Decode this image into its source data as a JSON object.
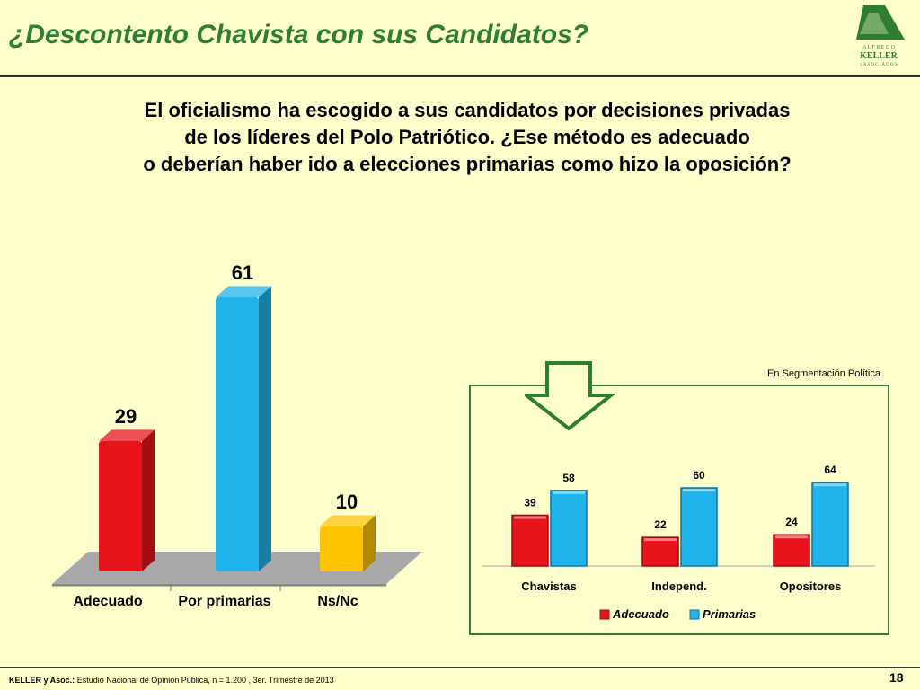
{
  "slide": {
    "title": "¿Descontento Chavista con sus Candidatos?",
    "question_lines": [
      "El oficialismo ha escogido a sus candidatos por decisiones privadas",
      "de los líderes del Polo Patriótico. ¿Ese método es adecuado",
      "o deberían haber ido a elecciones primarias como hizo la oposición?"
    ],
    "segment_note": "En Segmentación Política",
    "footer_source": "KELLER y Asoc.:",
    "footer_text": " Estudio Nacional de Opinión Pública, n = 1.200 , 3er. Trimestre de 2013",
    "page_number": "18"
  },
  "logo": {
    "line1": "A L F R E D O",
    "line2": "KELLER",
    "line3": "y  A S O C I A D O S",
    "color": "#2E7D32"
  },
  "colors": {
    "background": "#FFFFCC",
    "accent_green": "#2E7D32",
    "red": "#E8141C",
    "blue": "#1FB4EC",
    "yellow": "#FFC400",
    "floor": "#A8A8A8"
  },
  "chart_data": [
    {
      "type": "bar",
      "categories": [
        "Adecuado",
        "Por primarias",
        "Ns/Nc"
      ],
      "values": [
        29,
        61,
        10
      ],
      "colors": [
        "#E8141C",
        "#1FB4EC",
        "#FFC400"
      ],
      "ylim": [
        0,
        70
      ],
      "grid": false,
      "legend": false
    },
    {
      "type": "bar",
      "categories": [
        "Chavistas",
        "Independ.",
        "Opositores"
      ],
      "series": [
        {
          "name": "Adecuado",
          "values": [
            39,
            22,
            24
          ],
          "color": "#E8141C"
        },
        {
          "name": "Primarias",
          "values": [
            58,
            60,
            64
          ],
          "color": "#1FB4EC"
        }
      ],
      "ylim": [
        0,
        75
      ],
      "grid": false,
      "legend": "bottom"
    }
  ]
}
